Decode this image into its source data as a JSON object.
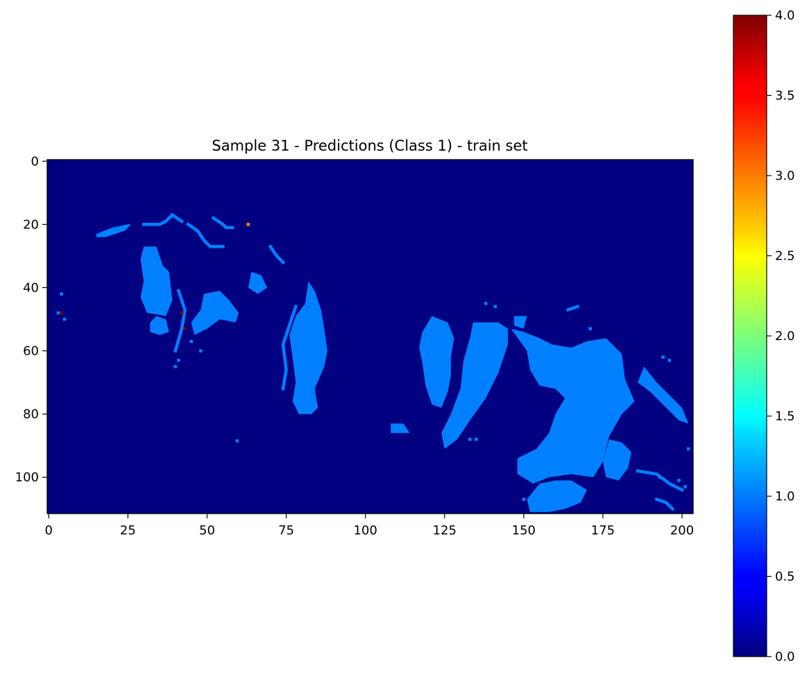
{
  "chart_data": {
    "type": "heatmap",
    "title": "Sample 31 - Predictions (Class 1) - train set",
    "xlabel": "",
    "ylabel": "",
    "x_range": [
      -0.5,
      203.5
    ],
    "y_range": [
      -0.5,
      111.5
    ],
    "x_ticks": [
      "0",
      "25",
      "50",
      "75",
      "100",
      "125",
      "150",
      "175",
      "200"
    ],
    "y_ticks": [
      "0",
      "20",
      "40",
      "60",
      "80",
      "100"
    ],
    "colormap": "jet",
    "value_range": [
      0.0,
      4.0
    ],
    "colorbar_ticks": [
      "0.0",
      "0.5",
      "1.0",
      "1.5",
      "2.0",
      "2.5",
      "3.0",
      "3.5",
      "4.0"
    ],
    "background_value": 0,
    "regions": [
      {
        "value": 1,
        "polygon": [
          [
            30,
            27
          ],
          [
            34,
            27
          ],
          [
            36,
            33
          ],
          [
            38,
            35
          ],
          [
            39,
            44
          ],
          [
            37,
            49
          ],
          [
            31,
            48
          ],
          [
            29,
            43
          ],
          [
            30,
            38
          ],
          [
            29,
            31
          ]
        ]
      },
      {
        "value": 1,
        "polygon": [
          [
            49,
            42
          ],
          [
            54,
            41
          ],
          [
            57,
            44
          ],
          [
            60,
            48
          ],
          [
            59,
            51
          ],
          [
            54,
            50
          ],
          [
            50,
            53
          ],
          [
            46,
            55
          ],
          [
            45,
            51
          ],
          [
            48,
            47
          ]
        ]
      },
      {
        "value": 1,
        "polygon": [
          [
            34,
            49
          ],
          [
            37,
            50
          ],
          [
            38,
            54
          ],
          [
            35,
            55
          ],
          [
            32,
            54
          ],
          [
            32,
            51
          ]
        ]
      },
      {
        "value": 1,
        "polygon": [
          [
            82,
            38
          ],
          [
            84,
            41
          ],
          [
            86,
            47
          ],
          [
            87,
            53
          ],
          [
            88,
            60
          ],
          [
            87,
            65
          ],
          [
            84,
            72
          ],
          [
            85,
            78
          ],
          [
            83,
            80
          ],
          [
            79,
            80
          ],
          [
            77,
            76
          ],
          [
            78,
            70
          ],
          [
            77,
            62
          ],
          [
            76,
            55
          ],
          [
            78,
            49
          ],
          [
            81,
            45
          ]
        ]
      },
      {
        "value": 1,
        "polygon": [
          [
            64,
            35
          ],
          [
            67,
            36
          ],
          [
            69,
            40
          ],
          [
            66,
            42
          ],
          [
            63,
            40
          ]
        ]
      },
      {
        "value": 1,
        "polygon": [
          [
            121,
            49
          ],
          [
            126,
            51
          ],
          [
            128,
            56
          ],
          [
            127,
            62
          ],
          [
            127,
            68
          ],
          [
            126,
            73
          ],
          [
            124,
            78
          ],
          [
            121,
            77
          ],
          [
            119,
            71
          ],
          [
            118,
            64
          ],
          [
            117,
            59
          ],
          [
            118,
            54
          ]
        ]
      },
      {
        "value": 1,
        "polygon": [
          [
            134,
            51
          ],
          [
            142,
            51
          ],
          [
            145,
            53
          ],
          [
            145,
            58
          ],
          [
            142,
            67
          ],
          [
            138,
            75
          ],
          [
            133,
            82
          ],
          [
            129,
            88
          ],
          [
            125,
            91
          ],
          [
            124,
            86
          ],
          [
            127,
            80
          ],
          [
            130,
            72
          ],
          [
            131,
            63
          ],
          [
            133,
            56
          ]
        ]
      },
      {
        "value": 1,
        "polygon": [
          [
            146,
            53
          ],
          [
            150,
            54
          ],
          [
            155,
            56
          ],
          [
            159,
            58
          ],
          [
            165,
            59
          ],
          [
            170,
            57
          ],
          [
            176,
            56
          ],
          [
            181,
            61
          ],
          [
            182,
            69
          ],
          [
            185,
            76
          ],
          [
            181,
            80
          ],
          [
            177,
            87
          ],
          [
            175,
            95
          ],
          [
            172,
            100
          ],
          [
            165,
            99
          ],
          [
            158,
            100
          ],
          [
            153,
            102
          ],
          [
            148,
            99
          ],
          [
            148,
            94
          ],
          [
            154,
            91
          ],
          [
            158,
            86
          ],
          [
            160,
            80
          ],
          [
            163,
            75
          ],
          [
            160,
            72
          ],
          [
            155,
            71
          ],
          [
            152,
            66
          ],
          [
            151,
            60
          ]
        ]
      },
      {
        "value": 1,
        "polygon": [
          [
            177,
            88
          ],
          [
            181,
            89
          ],
          [
            184,
            92
          ],
          [
            183,
            97
          ],
          [
            180,
            101
          ],
          [
            176,
            100
          ],
          [
            175,
            95
          ]
        ]
      },
      {
        "value": 1,
        "polygon": [
          [
            155,
            102
          ],
          [
            160,
            101
          ],
          [
            165,
            101
          ],
          [
            170,
            104
          ],
          [
            168,
            108
          ],
          [
            163,
            110
          ],
          [
            158,
            111
          ],
          [
            152,
            111
          ],
          [
            151,
            107
          ]
        ]
      },
      {
        "value": 1,
        "polygon": [
          [
            108,
            83
          ],
          [
            112,
            83
          ],
          [
            114,
            86
          ],
          [
            108,
            86
          ]
        ]
      },
      {
        "value": 1,
        "polygon": [
          [
            147,
            49
          ],
          [
            151,
            49
          ],
          [
            150,
            53
          ],
          [
            147,
            52
          ]
        ]
      },
      {
        "value": 1,
        "polygon": [
          [
            188,
            65
          ],
          [
            192,
            70
          ],
          [
            196,
            74
          ],
          [
            200,
            78
          ],
          [
            202,
            83
          ],
          [
            199,
            82
          ],
          [
            195,
            78
          ],
          [
            190,
            73
          ],
          [
            186,
            70
          ]
        ]
      },
      {
        "value": 1,
        "polygon": [
          [
            15,
            23
          ],
          [
            20,
            21
          ],
          [
            25,
            20
          ],
          [
            26,
            20
          ],
          [
            24,
            22
          ],
          [
            18,
            24
          ],
          [
            15,
            24
          ]
        ]
      },
      {
        "value": 1,
        "polygon": [
          [
            59,
            88
          ],
          [
            60,
            88
          ],
          [
            60,
            89
          ],
          [
            59,
            89
          ]
        ]
      }
    ],
    "strokes": [
      {
        "value": 1,
        "points": [
          [
            30,
            20
          ],
          [
            35,
            20
          ],
          [
            37,
            19
          ],
          [
            39,
            17
          ],
          [
            42,
            19
          ]
        ]
      },
      {
        "value": 1,
        "points": [
          [
            44,
            20
          ],
          [
            47,
            22
          ],
          [
            49,
            25
          ],
          [
            51,
            27
          ],
          [
            55,
            27
          ]
        ]
      },
      {
        "value": 1,
        "points": [
          [
            52,
            18
          ],
          [
            55,
            20
          ],
          [
            56,
            21
          ],
          [
            58,
            21
          ]
        ]
      },
      {
        "value": 1,
        "points": [
          [
            70,
            27
          ],
          [
            72,
            30
          ],
          [
            74,
            32
          ]
        ]
      },
      {
        "value": 1,
        "points": [
          [
            78,
            46
          ],
          [
            76,
            52
          ],
          [
            74,
            58
          ],
          [
            75,
            66
          ],
          [
            74,
            72
          ]
        ]
      },
      {
        "value": 1,
        "points": [
          [
            41,
            41
          ],
          [
            43,
            47
          ],
          [
            42,
            53
          ],
          [
            40,
            60
          ]
        ]
      },
      {
        "value": 1,
        "points": [
          [
            186,
            98
          ],
          [
            192,
            99
          ],
          [
            196,
            102
          ],
          [
            200,
            104
          ]
        ]
      },
      {
        "value": 1,
        "points": [
          [
            192,
            107
          ],
          [
            195,
            108
          ],
          [
            197,
            110
          ]
        ]
      },
      {
        "value": 1,
        "points": [
          [
            164,
            47
          ],
          [
            167,
            46
          ]
        ]
      }
    ],
    "specks": [
      {
        "value": 1,
        "points": [
          [
            4,
            42
          ],
          [
            3,
            48
          ],
          [
            5,
            50
          ],
          [
            45,
            57
          ],
          [
            48,
            60
          ],
          [
            41,
            63
          ],
          [
            40,
            65
          ],
          [
            133,
            88
          ],
          [
            135,
            88
          ],
          [
            138,
            45
          ],
          [
            141,
            46
          ],
          [
            171,
            53
          ],
          [
            194,
            62
          ],
          [
            196,
            63
          ],
          [
            202,
            91
          ],
          [
            201,
            103
          ],
          [
            199,
            101
          ],
          [
            193,
            100
          ],
          [
            204,
            103
          ],
          [
            150,
            107
          ],
          [
            157,
            107
          ],
          [
            127,
            86
          ],
          [
            126,
            62
          ]
        ]
      },
      {
        "value": 4,
        "points": [
          [
            4,
            48
          ],
          [
            42,
            48
          ],
          [
            43,
            53
          ]
        ]
      },
      {
        "value": 3,
        "points": [
          [
            63,
            20
          ]
        ]
      }
    ]
  }
}
